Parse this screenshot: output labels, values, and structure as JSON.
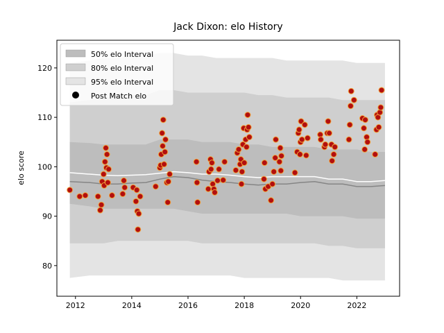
{
  "chart_data": {
    "type": "band",
    "title": "Jack Dixon: elo History",
    "ylabel": "elo score",
    "xlim": [
      2011.34,
      2023.52
    ],
    "ylim": [
      73.8,
      125.6
    ],
    "xticks": [
      2012,
      2014,
      2016,
      2018,
      2020,
      2022
    ],
    "yticks": [
      80,
      90,
      100,
      110,
      120
    ],
    "legend": "upper left",
    "x": [
      2011.8,
      2012.5,
      2013,
      2013.5,
      2014,
      2014.5,
      2015,
      2015.5,
      2016,
      2016.5,
      2017,
      2017.5,
      2018,
      2018.5,
      2019,
      2019.5,
      2020,
      2020.5,
      2021,
      2021.5,
      2022,
      2022.5,
      2023
    ],
    "bands": [
      {
        "name": "50% elo Interval",
        "color": "#bdbdbd",
        "upper": [
          105,
          104.8,
          104.5,
          104.5,
          104.5,
          104.5,
          105.5,
          105.5,
          105.5,
          105,
          105,
          105,
          104.5,
          104.5,
          104,
          104,
          104,
          104,
          103.5,
          103.5,
          103.5,
          103,
          103
        ],
        "lower": [
          92.5,
          92,
          91.5,
          91.5,
          91.5,
          91.5,
          91.5,
          91.5,
          91,
          90.5,
          90.5,
          90.5,
          90.5,
          90.5,
          90.5,
          90.5,
          90,
          90,
          90,
          90,
          89.5,
          89.5,
          89.5
        ]
      },
      {
        "name": "80% elo Interval",
        "color": "#cfcfcf",
        "upper": [
          113,
          113.5,
          114,
          114,
          114.5,
          114.5,
          115.5,
          115.5,
          115,
          115,
          115,
          115,
          115,
          114.5,
          114.5,
          114,
          114,
          114,
          114,
          113.5,
          113.5,
          113.5,
          113.5
        ],
        "lower": [
          84.5,
          84.5,
          84.5,
          85,
          85,
          85,
          85,
          85,
          85,
          84.5,
          84.5,
          84.5,
          84.5,
          84.5,
          84.5,
          84.5,
          84.5,
          84.5,
          84,
          84,
          83.5,
          83.5,
          83.5
        ]
      },
      {
        "name": "95% elo Interval",
        "color": "#e4e4e4",
        "upper": [
          121,
          121.5,
          122,
          122,
          122.5,
          122.5,
          123,
          123,
          122.5,
          122.5,
          122,
          122,
          122,
          122,
          122,
          121.5,
          121.5,
          121.5,
          121.5,
          121.5,
          121,
          121,
          121
        ],
        "lower": [
          77.5,
          78,
          78,
          78,
          78,
          78,
          78,
          78,
          78,
          78,
          78,
          78,
          77.5,
          77.5,
          77.5,
          77.5,
          77.5,
          77.5,
          77.5,
          77,
          77,
          77,
          77
        ]
      }
    ],
    "lines": [
      {
        "color": "#858585",
        "values": [
          97,
          96.8,
          96.5,
          96.5,
          96.7,
          96.8,
          97.5,
          98,
          97.8,
          97.3,
          97,
          96.8,
          96.5,
          96.3,
          96.5,
          96.5,
          96.8,
          97,
          96.5,
          96.5,
          96,
          96,
          96.2
        ]
      },
      {
        "color": "#ffffff",
        "values": [
          98.8,
          98.5,
          98.3,
          98.2,
          98.3,
          98.4,
          98.7,
          99,
          98.8,
          98.5,
          98.5,
          98.3,
          98,
          97.8,
          98,
          98,
          98,
          98,
          97.5,
          97.5,
          97,
          97,
          97.2
        ]
      }
    ],
    "scatter": {
      "name": "Post Match elo",
      "color": "#b20f0f",
      "edgecolor": "#f2a33a",
      "x": [
        2011.8,
        2012.15,
        2012.35,
        2012.8,
        2012.88,
        2012.92,
        2012.95,
        2013.0,
        2013.02,
        2013.05,
        2013.08,
        2013.1,
        2013.12,
        2013.15,
        2013.18,
        2013.3,
        2013.68,
        2013.72,
        2013.75,
        2014.05,
        2014.15,
        2014.18,
        2014.2,
        2014.22,
        2014.25,
        2014.3,
        2014.85,
        2015.0,
        2015.03,
        2015.05,
        2015.08,
        2015.1,
        2015.12,
        2015.15,
        2015.18,
        2015.2,
        2015.25,
        2015.28,
        2015.3,
        2015.35,
        2016.3,
        2016.32,
        2016.34,
        2016.72,
        2016.75,
        2016.8,
        2016.82,
        2016.85,
        2016.88,
        2016.92,
        2016.95,
        2017.05,
        2017.1,
        2017.25,
        2017.3,
        2017.7,
        2017.75,
        2017.8,
        2017.85,
        2017.88,
        2017.9,
        2017.92,
        2017.95,
        2017.98,
        2018.0,
        2018.05,
        2018.08,
        2018.1,
        2018.12,
        2018.15,
        2018.18,
        2018.7,
        2018.72,
        2018.75,
        2018.85,
        2018.95,
        2019.0,
        2019.05,
        2019.1,
        2019.12,
        2019.25,
        2019.28,
        2019.3,
        2019.32,
        2019.8,
        2019.88,
        2019.92,
        2019.95,
        2019.98,
        2020.0,
        2020.02,
        2020.05,
        2020.15,
        2020.2,
        2020.25,
        2020.7,
        2020.72,
        2020.85,
        2020.88,
        2020.95,
        2020.98,
        2021.02,
        2021.1,
        2021.12,
        2021.18,
        2021.22,
        2021.72,
        2021.75,
        2021.78,
        2021.8,
        2021.9,
        2022.2,
        2022.25,
        2022.28,
        2022.3,
        2022.35,
        2022.38,
        2022.65,
        2022.7,
        2022.72,
        2022.75,
        2022.78,
        2022.82,
        2022.85,
        2022.88
      ],
      "values": [
        95.3,
        94,
        94.2,
        94,
        91.2,
        92.3,
        97,
        98.5,
        96.2,
        101,
        103.8,
        99.8,
        102.5,
        96.8,
        99.5,
        94.2,
        94.5,
        97.2,
        95.8,
        95.8,
        93,
        95.3,
        91,
        87.3,
        90.5,
        94,
        96,
        99.8,
        100.3,
        102.5,
        106.8,
        104.2,
        109.5,
        100.5,
        103,
        105.5,
        96.8,
        92.8,
        97,
        98.5,
        101,
        96.8,
        92.8,
        95.5,
        99,
        101.5,
        99.5,
        100.8,
        96.5,
        95.5,
        94.8,
        97.2,
        99.5,
        97.3,
        101,
        99.3,
        102.8,
        103.5,
        100.5,
        101.5,
        96.5,
        99,
        104.5,
        107.8,
        100.8,
        105.5,
        104,
        107.5,
        110.5,
        108,
        106,
        97.5,
        100.8,
        95.5,
        96,
        93.2,
        96.5,
        99,
        101.8,
        105.5,
        101,
        103.8,
        99.2,
        102.2,
        98.8,
        103,
        106.8,
        107.5,
        102.5,
        105,
        109.2,
        105.5,
        108.5,
        102.3,
        105.8,
        106.5,
        105.5,
        104,
        104.5,
        106.8,
        109.2,
        106.8,
        104.5,
        101.2,
        102.5,
        104,
        105.5,
        108.5,
        112.3,
        115.3,
        113.5,
        109.8,
        107.8,
        103.5,
        109.5,
        106,
        105,
        102.5,
        107.5,
        110.5,
        110,
        108,
        111,
        112,
        115.5
      ]
    }
  }
}
